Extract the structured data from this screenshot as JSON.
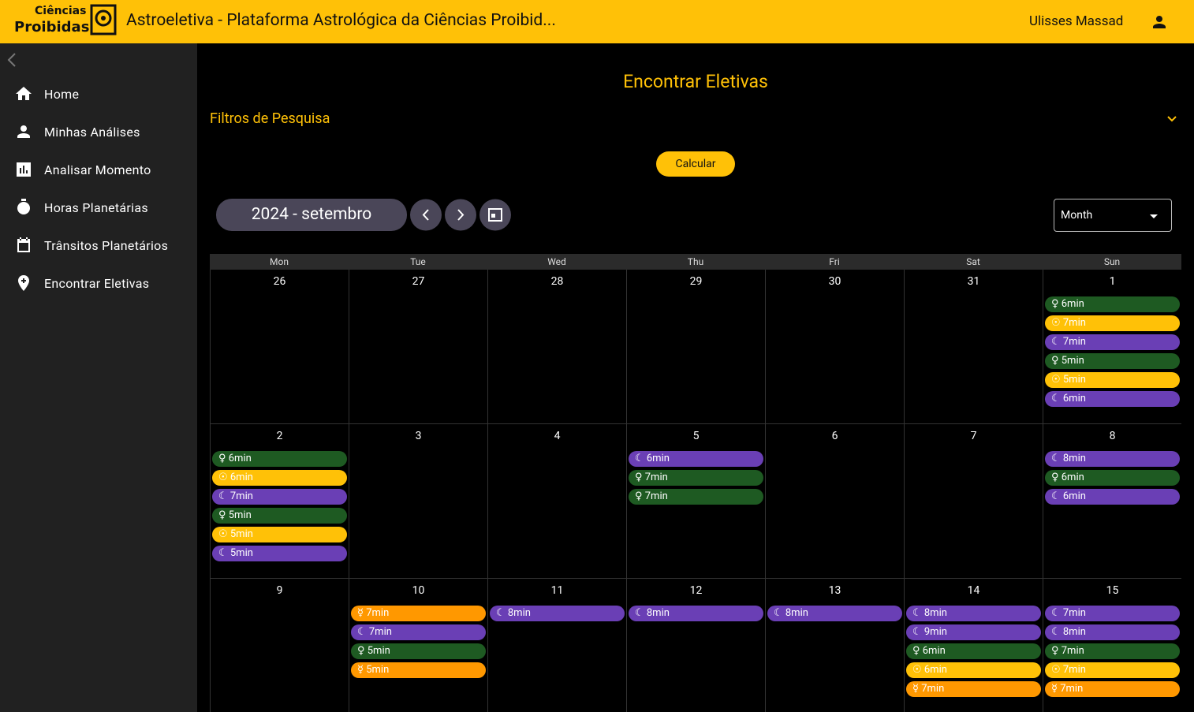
{
  "header": {
    "logo_line1": "Ciências",
    "logo_line2": "Proibidas",
    "title": "Astroeletiva - Plataforma Astrológica da Ciências Proibid...",
    "user": "Ulisses Massad"
  },
  "sidebar": {
    "items": [
      "Home",
      "Minhas Análises",
      "Analisar Momento",
      "Horas Planetárias",
      "Trânsitos Planetários",
      "Encontrar Eletivas"
    ]
  },
  "page": {
    "title": "Encontrar Eletivas",
    "filters": "Filtros de Pesquisa",
    "button": "Calcular",
    "period": "2024 - setembro",
    "view": "Month"
  },
  "calendar": {
    "weekdays": [
      "Mon",
      "Tue",
      "Wed",
      "Thu",
      "Fri",
      "Sat",
      "Sun"
    ],
    "weeks": [
      {
        "days": [
          {
            "day": 26,
            "events": []
          },
          {
            "day": 27,
            "events": []
          },
          {
            "day": 28,
            "events": []
          },
          {
            "day": 29,
            "events": []
          },
          {
            "day": 30,
            "events": []
          },
          {
            "day": 31,
            "events": []
          },
          {
            "day": 1,
            "events": [
              {
                "text": "♀ 6min",
                "color": "#1e5a22"
              },
              {
                "text": "☉ 7min",
                "color": "#ffc107"
              },
              {
                "text": "☾ 7min",
                "color": "#6a3fb5"
              },
              {
                "text": "♀ 5min",
                "color": "#1e5a22"
              },
              {
                "text": "☉ 5min",
                "color": "#ffc107"
              },
              {
                "text": "☾ 6min",
                "color": "#6a3fb5"
              }
            ]
          }
        ]
      },
      {
        "days": [
          {
            "day": 2,
            "events": [
              {
                "text": "♀ 6min",
                "color": "#1e5a22"
              },
              {
                "text": "☉ 6min",
                "color": "#ffc107"
              },
              {
                "text": "☾ 7min",
                "color": "#6a3fb5"
              },
              {
                "text": "♀ 5min",
                "color": "#1e5a22"
              },
              {
                "text": "☉ 5min",
                "color": "#ffc107"
              },
              {
                "text": "☾ 5min",
                "color": "#6a3fb5"
              }
            ]
          },
          {
            "day": 3,
            "events": []
          },
          {
            "day": 4,
            "events": []
          },
          {
            "day": 5,
            "events": [
              {
                "text": "☾ 6min",
                "color": "#6a3fb5"
              },
              {
                "text": "♀ 7min",
                "color": "#1e5a22"
              },
              {
                "text": "♀ 7min",
                "color": "#1e5a22"
              }
            ]
          },
          {
            "day": 6,
            "events": []
          },
          {
            "day": 7,
            "events": []
          },
          {
            "day": 8,
            "events": [
              {
                "text": "☾ 8min",
                "color": "#6a3fb5"
              },
              {
                "text": "♀ 6min",
                "color": "#1e5a22"
              },
              {
                "text": "☾ 6min",
                "color": "#6a3fb5"
              }
            ]
          }
        ]
      },
      {
        "days": [
          {
            "day": 9,
            "events": []
          },
          {
            "day": 10,
            "events": [
              {
                "text": "☿ 7min",
                "color": "#ff9800"
              },
              {
                "text": "☾ 7min",
                "color": "#6a3fb5"
              },
              {
                "text": "♀ 5min",
                "color": "#1e5a22"
              },
              {
                "text": "☿ 5min",
                "color": "#ff9800"
              }
            ]
          },
          {
            "day": 11,
            "events": [
              {
                "text": "☾ 8min",
                "color": "#6a3fb5"
              }
            ]
          },
          {
            "day": 12,
            "events": [
              {
                "text": "☾ 8min",
                "color": "#6a3fb5"
              }
            ]
          },
          {
            "day": 13,
            "events": [
              {
                "text": "☾ 8min",
                "color": "#6a3fb5"
              }
            ]
          },
          {
            "day": 14,
            "events": [
              {
                "text": "☾ 8min",
                "color": "#6a3fb5"
              },
              {
                "text": "☾ 9min",
                "color": "#6a3fb5"
              },
              {
                "text": "♀ 6min",
                "color": "#1e5a22"
              },
              {
                "text": "☉ 6min",
                "color": "#ffc107"
              },
              {
                "text": "☿ 7min",
                "color": "#ff9800"
              }
            ]
          },
          {
            "day": 15,
            "events": [
              {
                "text": "☾ 7min",
                "color": "#6a3fb5"
              },
              {
                "text": "☾ 8min",
                "color": "#6a3fb5"
              },
              {
                "text": "♀ 7min",
                "color": "#1e5a22"
              },
              {
                "text": "☉ 7min",
                "color": "#ffc107"
              },
              {
                "text": "☿ 7min",
                "color": "#ff9800"
              }
            ]
          }
        ]
      }
    ]
  }
}
